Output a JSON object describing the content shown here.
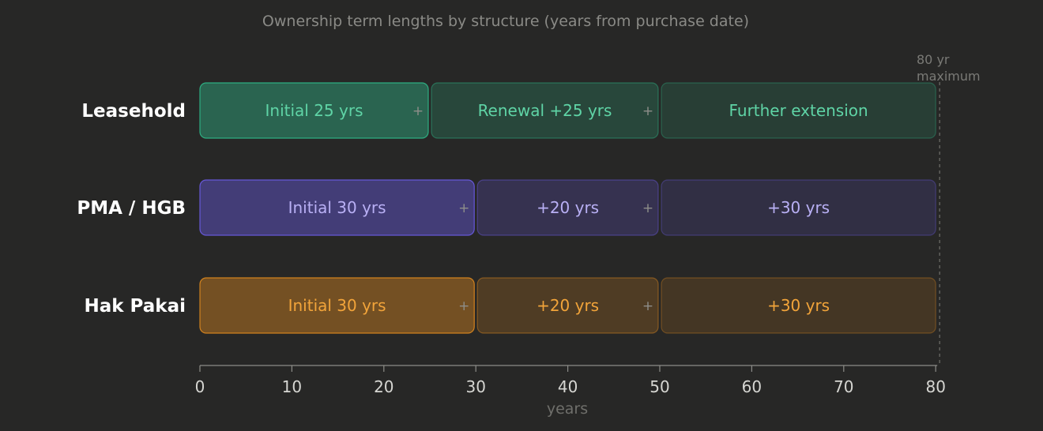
{
  "chart_data": {
    "type": "bar",
    "orientation": "horizontal-stacked",
    "title": "Ownership term lengths by structure (years from purchase date)",
    "xlabel": "years",
    "xlim": [
      0,
      81
    ],
    "xticks": [
      0,
      10,
      20,
      30,
      40,
      50,
      60,
      70,
      80
    ],
    "grid": false,
    "marker": {
      "value": 80,
      "label_line1": "80 yr",
      "label_line2": "maximum"
    },
    "joiner_symbol": "+",
    "categories": [
      "Leasehold",
      "PMA / HGB",
      "Hak Pakai"
    ],
    "rows": [
      {
        "name": "Leasehold",
        "color": "#2fb98a",
        "text_color": "#5fd4a6",
        "segments": [
          {
            "start": 0,
            "end": 25,
            "label": "Initial 25 yrs"
          },
          {
            "start": 25,
            "end": 50,
            "label": "Renewal +25 yrs"
          },
          {
            "start": 50,
            "end": 80,
            "label": "Further extension"
          }
        ]
      },
      {
        "name": "PMA / HGB",
        "color": "#6c5ce7",
        "text_color": "#b9b0f5",
        "segments": [
          {
            "start": 0,
            "end": 30,
            "label": "Initial 30 yrs"
          },
          {
            "start": 30,
            "end": 50,
            "label": "+20 yrs"
          },
          {
            "start": 50,
            "end": 80,
            "label": "+30 yrs"
          }
        ]
      },
      {
        "name": "Hak Pakai",
        "color": "#e08a1e",
        "text_color": "#f2a43a",
        "segments": [
          {
            "start": 0,
            "end": 30,
            "label": "Initial 30 yrs"
          },
          {
            "start": 30,
            "end": 50,
            "label": "+20 yrs"
          },
          {
            "start": 50,
            "end": 80,
            "label": "+30 yrs"
          }
        ]
      }
    ]
  }
}
